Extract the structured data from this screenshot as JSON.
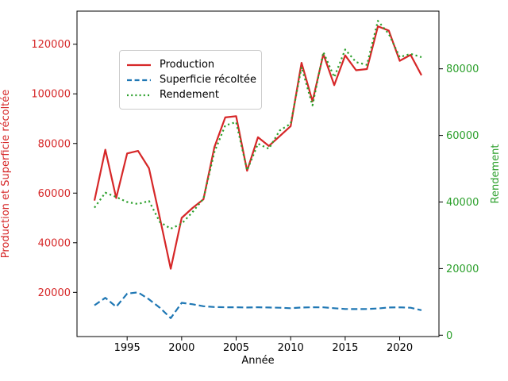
{
  "chart_data": {
    "type": "line",
    "title": "",
    "xlabel": "Année",
    "ylabel_left": "Production et Superficie récoltée",
    "ylabel_right": "Rendement",
    "grid": false,
    "legend_position": "upper-left-inside",
    "x": [
      1992,
      1993,
      1994,
      1995,
      1996,
      1997,
      1998,
      1999,
      2000,
      2001,
      2002,
      2003,
      2004,
      2005,
      2006,
      2007,
      2008,
      2009,
      2010,
      2011,
      2012,
      2013,
      2014,
      2015,
      2016,
      2017,
      2018,
      2019,
      2020,
      2021,
      2022
    ],
    "series": [
      {
        "name": "Production",
        "axis": "left",
        "color": "#d62728",
        "style": "solid",
        "values": [
          57000,
          77500,
          58000,
          76000,
          77000,
          70000,
          50000,
          29500,
          50000,
          54000,
          57500,
          78500,
          90500,
          91000,
          69000,
          82500,
          79000,
          83000,
          87000,
          112500,
          97000,
          116000,
          103500,
          115500,
          109500,
          110000,
          127200,
          125500,
          113300,
          115700,
          107500
        ]
      },
      {
        "name": "Superficie récoltée",
        "axis": "left",
        "color": "#1f77b4",
        "style": "dashed",
        "values": [
          14800,
          17800,
          14200,
          19500,
          20000,
          17200,
          13800,
          9600,
          15800,
          15200,
          14400,
          14100,
          14000,
          14000,
          13900,
          14000,
          13900,
          13800,
          13600,
          13900,
          14000,
          13950,
          13600,
          13300,
          13250,
          13300,
          13500,
          13900,
          13950,
          13800,
          12800
        ]
      },
      {
        "name": "Rendement",
        "axis": "right",
        "color": "#2ca02c",
        "style": "dotted",
        "values": [
          38300,
          42800,
          41500,
          40000,
          39400,
          40300,
          34000,
          32000,
          33500,
          37000,
          41000,
          55000,
          63000,
          64000,
          49500,
          57500,
          56000,
          61500,
          63500,
          80500,
          69000,
          85000,
          77500,
          85800,
          82000,
          81200,
          94400,
          90500,
          83500,
          84500,
          83500
        ]
      }
    ],
    "x_ticks": [
      1995,
      2000,
      2005,
      2010,
      2015,
      2020
    ],
    "left_ticks": [
      20000,
      40000,
      60000,
      80000,
      100000,
      120000
    ],
    "right_ticks": [
      0,
      20000,
      40000,
      60000,
      80000
    ],
    "x_range": [
      1990.4,
      2023.6
    ],
    "left_range": [
      2190,
      133340
    ],
    "right_range": [
      -405,
      97330
    ],
    "colors": {
      "left_axis_text": "#d62728",
      "right_axis_text": "#2ca02c",
      "xaxis_text": "#000000",
      "spine": "#000000",
      "background": "#ffffff"
    }
  }
}
